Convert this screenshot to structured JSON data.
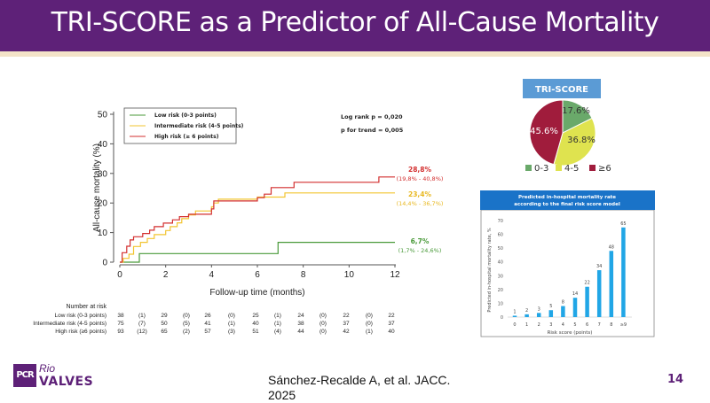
{
  "slide": {
    "title": "TRI-SCORE as a Predictor of All-Cause Mortality",
    "citation": "Sánchez-Recalde A, et al. JACC. 2025",
    "page_number": "14",
    "logo": {
      "mark": "PCR",
      "line1": "Rio",
      "line2": "VALVES"
    },
    "colors": {
      "brand_purple": "#5e2178",
      "beige_strip": "#f3e3c8"
    }
  },
  "chart_data": [
    {
      "type": "line",
      "subtype": "kaplan-meier-step",
      "title": "",
      "xlabel": "Follow-up time (months)",
      "ylabel": "All-cause mortality (%)",
      "xlim": [
        0,
        12
      ],
      "ylim": [
        0,
        50
      ],
      "x_ticks": [
        0,
        2,
        4,
        6,
        8,
        10,
        12
      ],
      "y_ticks": [
        0,
        10,
        20,
        30,
        40,
        50
      ],
      "grid": false,
      "legend_position": "top-left",
      "stats": {
        "line1_label": "Log rank p = ",
        "line1_value": "0,020",
        "line2_label": "p for trend = ",
        "line2_value": "0,005"
      },
      "series": [
        {
          "name": "Low risk (0-3 points)",
          "color": "#4a9a3a",
          "points": [
            [
              0,
              0
            ],
            [
              0.85,
              0
            ],
            [
              0.85,
              2.9
            ],
            [
              6.9,
              2.9
            ],
            [
              6.9,
              6.7
            ],
            [
              12,
              6.7
            ]
          ],
          "end_label": "6,7%",
          "end_ci": "(1,7% - 24,6%)"
        },
        {
          "name": "Intermediate risk (4-5 points)",
          "color": "#f2c531",
          "points": [
            [
              0,
              0
            ],
            [
              0.15,
              0
            ],
            [
              0.15,
              1.3
            ],
            [
              0.4,
              1.3
            ],
            [
              0.4,
              2.7
            ],
            [
              0.6,
              2.7
            ],
            [
              0.6,
              5.3
            ],
            [
              0.9,
              5.3
            ],
            [
              0.9,
              6.7
            ],
            [
              1.2,
              6.7
            ],
            [
              1.2,
              8.0
            ],
            [
              1.5,
              8.0
            ],
            [
              1.5,
              9.3
            ],
            [
              2.0,
              9.3
            ],
            [
              2.0,
              10.7
            ],
            [
              2.2,
              10.7
            ],
            [
              2.2,
              12.0
            ],
            [
              2.5,
              12.0
            ],
            [
              2.5,
              13.3
            ],
            [
              2.7,
              13.3
            ],
            [
              2.7,
              14.7
            ],
            [
              3.0,
              14.7
            ],
            [
              3.0,
              16.0
            ],
            [
              3.3,
              16.0
            ],
            [
              3.3,
              17.3
            ],
            [
              4.0,
              17.3
            ],
            [
              4.0,
              18.7
            ],
            [
              4.1,
              18.7
            ],
            [
              4.1,
              20.0
            ],
            [
              4.3,
              20.0
            ],
            [
              4.3,
              21.3
            ],
            [
              6.0,
              21.3
            ],
            [
              6.0,
              22.0
            ],
            [
              7.2,
              22.0
            ],
            [
              7.2,
              23.4
            ],
            [
              12,
              23.4
            ]
          ],
          "end_label": "23,4%",
          "end_ci": "(14,4% - 36,7%)"
        },
        {
          "name": "High risk (≥ 6 points)",
          "color": "#d32f2f",
          "points": [
            [
              0,
              0
            ],
            [
              0.1,
              0
            ],
            [
              0.1,
              3.2
            ],
            [
              0.3,
              3.2
            ],
            [
              0.3,
              5.4
            ],
            [
              0.45,
              5.4
            ],
            [
              0.45,
              7.5
            ],
            [
              0.6,
              7.5
            ],
            [
              0.6,
              8.6
            ],
            [
              1.0,
              8.6
            ],
            [
              1.0,
              9.7
            ],
            [
              1.3,
              9.7
            ],
            [
              1.3,
              10.8
            ],
            [
              1.5,
              10.8
            ],
            [
              1.5,
              12.0
            ],
            [
              1.9,
              12.0
            ],
            [
              1.9,
              13.2
            ],
            [
              2.3,
              13.2
            ],
            [
              2.3,
              14.3
            ],
            [
              2.6,
              14.3
            ],
            [
              2.6,
              15.4
            ],
            [
              3.0,
              15.4
            ],
            [
              3.0,
              16.2
            ],
            [
              4.0,
              16.2
            ],
            [
              4.0,
              18.0
            ],
            [
              4.1,
              18.0
            ],
            [
              4.1,
              20.7
            ],
            [
              6.0,
              20.7
            ],
            [
              6.0,
              21.8
            ],
            [
              6.3,
              21.8
            ],
            [
              6.3,
              23.0
            ],
            [
              6.6,
              23.0
            ],
            [
              6.6,
              25.2
            ],
            [
              7.6,
              25.2
            ],
            [
              7.6,
              27.0
            ],
            [
              11.3,
              27.0
            ],
            [
              11.3,
              28.8
            ],
            [
              12,
              28.8
            ]
          ],
          "end_label": "28,8%",
          "end_ci": "(19,8% - 40,8%)"
        }
      ],
      "risk_table": {
        "title": "Number at risk",
        "rows": [
          {
            "label": "Low risk (0-3 points)",
            "values": [
              "38",
              "(1)",
              "29",
              "(0)",
              "26",
              "(0)",
              "25",
              "(1)",
              "24",
              "(0)",
              "22",
              "(0)",
              "22"
            ]
          },
          {
            "label": "Intermediate risk (4-5 points)",
            "values": [
              "75",
              "(7)",
              "50",
              "(5)",
              "41",
              "(1)",
              "40",
              "(1)",
              "38",
              "(0)",
              "37",
              "(0)",
              "37"
            ]
          },
          {
            "label": "High risk (≥6 points)",
            "values": [
              "93",
              "(12)",
              "65",
              "(2)",
              "57",
              "(3)",
              "51",
              "(4)",
              "44",
              "(0)",
              "42",
              "(1)",
              "40"
            ]
          }
        ]
      }
    },
    {
      "type": "pie",
      "title": "TRI-SCORE",
      "title_bg": "#5b9bd5",
      "slices": [
        {
          "label": "0-3",
          "value": 17.6,
          "display": "17.6%",
          "color": "#6aa96a"
        },
        {
          "label": "4-5",
          "value": 36.8,
          "display": "36.8%",
          "color": "#dfe34f"
        },
        {
          "label": "≥6",
          "value": 45.6,
          "display": "45.6%",
          "color": "#a01c3c"
        }
      ],
      "legend_position": "bottom"
    },
    {
      "type": "bar",
      "title": "Predicted in-hospital mortality rate according to the final risk score model",
      "title_line1": "Predicted in-hospital mortality rate",
      "title_line2": "according to the final risk score model",
      "title_bg": "#1a73c8",
      "bar_color": "#21a6e6",
      "categories": [
        "0",
        "1",
        "2",
        "3",
        "4",
        "5",
        "6",
        "7",
        "8",
        "≥9"
      ],
      "values": [
        1,
        2,
        3,
        5,
        8,
        14,
        22,
        34,
        48,
        65
      ],
      "xlabel": "Risk score (points)",
      "ylabel": "Predicted in-hospital mortality rate, %",
      "ylim": [
        0,
        70
      ],
      "y_ticks": [
        0,
        10,
        20,
        30,
        40,
        50,
        60,
        70
      ],
      "grid": false
    }
  ]
}
